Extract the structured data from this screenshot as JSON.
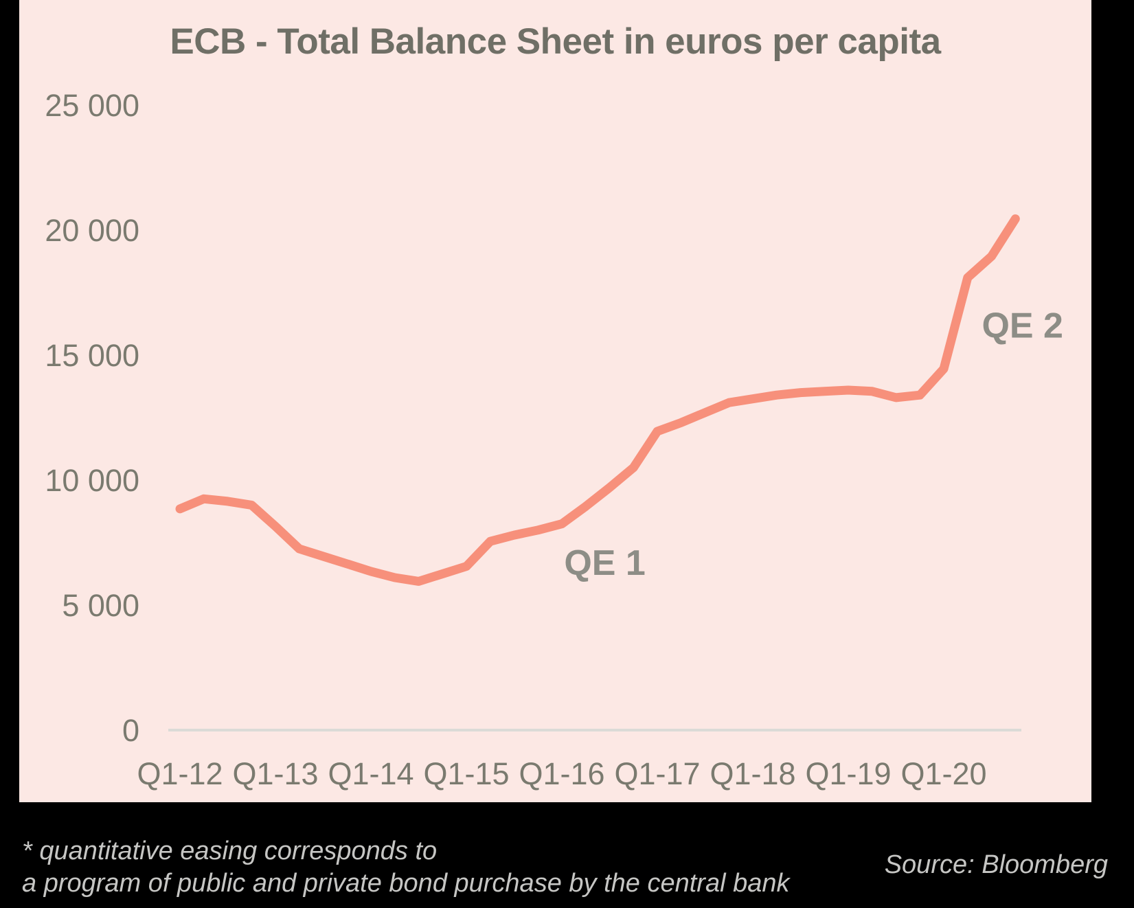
{
  "chart_data": {
    "type": "line",
    "title": "ECB - Total Balance Sheet in euros per capita",
    "xlabel": "",
    "ylabel": "",
    "ylim": [
      0,
      25000
    ],
    "grid": false,
    "legend": "none",
    "line_color": "#f7907b",
    "y_ticks": [
      {
        "value": 0,
        "label": "0"
      },
      {
        "value": 5000,
        "label": "5 000"
      },
      {
        "value": 10000,
        "label": "10 000"
      },
      {
        "value": 15000,
        "label": "15 000"
      },
      {
        "value": 20000,
        "label": "20 000"
      },
      {
        "value": 25000,
        "label": "25 000"
      }
    ],
    "x_tick_labels": [
      "Q1-12",
      "Q1-13",
      "Q1-14",
      "Q1-15",
      "Q1-16",
      "Q1-17",
      "Q1-18",
      "Q1-19",
      "Q1-20"
    ],
    "series": [
      {
        "name": "ECB total balance sheet in euros per capita",
        "x": [
          "Q1-12",
          "Q2-12",
          "Q3-12",
          "Q4-12",
          "Q1-13",
          "Q2-13",
          "Q3-13",
          "Q4-13",
          "Q1-14",
          "Q2-14",
          "Q3-14",
          "Q4-14",
          "Q1-15",
          "Q2-15",
          "Q3-15",
          "Q4-15",
          "Q1-16",
          "Q2-16",
          "Q3-16",
          "Q4-16",
          "Q1-17",
          "Q2-17",
          "Q3-17",
          "Q4-17",
          "Q1-18",
          "Q2-18",
          "Q3-18",
          "Q4-18",
          "Q1-19",
          "Q2-19",
          "Q3-19",
          "Q4-19",
          "Q1-20",
          "Q2-20",
          "Q3-20",
          "Q4-20"
        ],
        "values": [
          8850,
          9250,
          9150,
          9000,
          8150,
          7250,
          6950,
          6650,
          6350,
          6100,
          5950,
          6250,
          6550,
          7550,
          7800,
          8000,
          8250,
          8950,
          9700,
          10500,
          11950,
          12300,
          12700,
          13100,
          13250,
          13400,
          13500,
          13550,
          13600,
          13550,
          13300,
          13400,
          14450,
          18100,
          18950,
          20450
        ]
      }
    ],
    "annotations": [
      {
        "label": "QE 1",
        "q": 17.8,
        "value": 6700
      },
      {
        "label": "QE 2",
        "q": 35.3,
        "value": 16200
      }
    ]
  },
  "footnote": {
    "line1": "* quantitative easing corresponds to",
    "line2": "a program of public and private bond purchase by the central bank"
  },
  "source": {
    "label": "Source: Bloomberg"
  },
  "colors": {
    "slide_background": "#000000",
    "panel_background": "#fce8e4",
    "title_text": "#6f6f66",
    "axis_text": "#7a7a6f",
    "annotation_text": "#8d8d86",
    "axis_line": "#dbdbd7",
    "line": "#f7907b",
    "footnote_text": "#c6c6c4"
  }
}
